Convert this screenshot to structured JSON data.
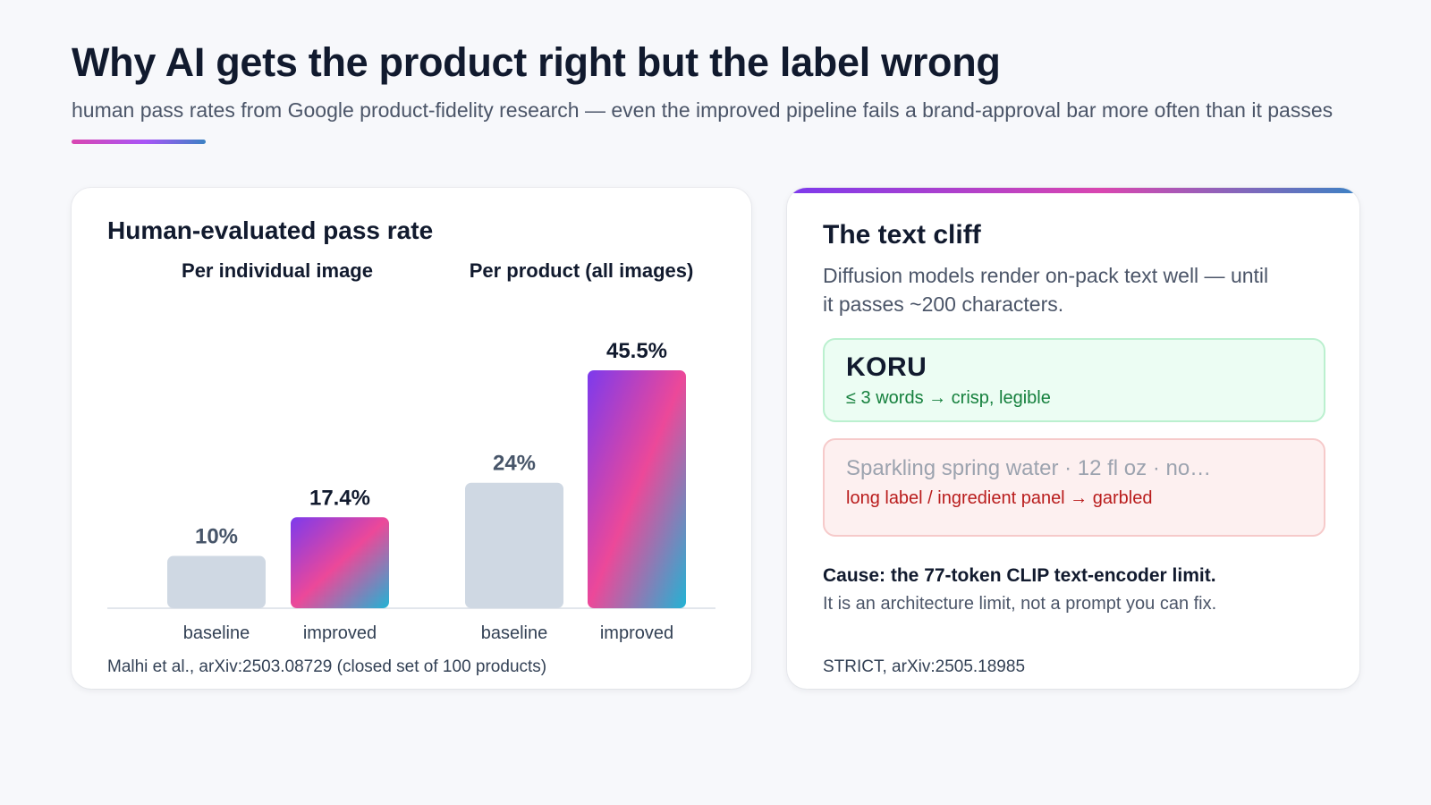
{
  "page": {
    "title": "Why AI gets the product right but the label wrong",
    "subtitle": "human pass rates from Google product-fidelity research — even the improved pipeline fails a brand-approval bar more often than it passes"
  },
  "colors": {
    "baseline_bar": "#cfd8e3",
    "improved_gradient": [
      "#7c3aed",
      "#ec4899",
      "#22b3d4"
    ],
    "ok_text": "#15803d",
    "bad_text": "#b91c1c"
  },
  "chart_data": {
    "type": "bar",
    "title": "Human-evaluated pass rate",
    "unit": "%",
    "ylim": [
      0,
      50
    ],
    "grid": false,
    "panels": [
      {
        "title": "Per individual image",
        "categories": [
          "baseline",
          "improved"
        ],
        "values": [
          10,
          17.4
        ],
        "labels": [
          "10%",
          "17.4%"
        ]
      },
      {
        "title": "Per product (all images)",
        "categories": [
          "baseline",
          "improved"
        ],
        "values": [
          24,
          45.5
        ],
        "labels": [
          "24%",
          "45.5%"
        ]
      }
    ],
    "source": "Malhi et al., arXiv:2503.08729 (closed set of 100 products)"
  },
  "cliff": {
    "title": "The text cliff",
    "description": "Diffusion models render on-pack text well — until it passes ~200 characters.",
    "ok_example": {
      "word": "KORU",
      "note": "≤ 3 words → crisp, legible"
    },
    "bad_example": {
      "text": "Sparkling spring water · 12 fl oz · no…",
      "note": "long label / ingredient panel → garbled"
    },
    "cause_head": "Cause: the 77-token CLIP text-encoder limit.",
    "cause_body": "It is an architecture limit, not a prompt you can fix.",
    "source": "STRICT, arXiv:2505.18985"
  }
}
